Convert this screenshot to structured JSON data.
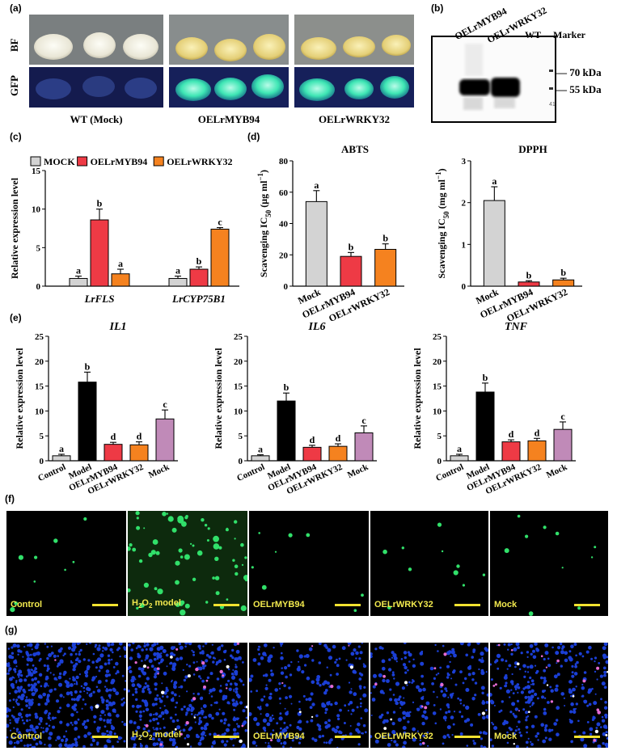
{
  "panel_a": {
    "label": "(a)",
    "row_labels": [
      "BF",
      "GFP"
    ],
    "columns": [
      "WT (Mock)",
      "OELrMYB94",
      "OELrWRKY32"
    ]
  },
  "panel_b": {
    "label": "(b)",
    "lanes": [
      "OELrMYB94",
      "OELrWRKY32",
      "WT",
      "Marker"
    ],
    "markers": [
      "70 kDa",
      "55 kDa"
    ],
    "faint_text": "417"
  },
  "chart_data": [
    {
      "panel": "(c)",
      "type": "bar",
      "categories": [
        "LrFLS",
        "LrCYP75B1"
      ],
      "series": [
        {
          "name": "MOCK",
          "values": [
            1.0,
            1.0
          ],
          "errors": [
            0.3,
            0.3
          ],
          "letters": [
            "a",
            "a"
          ],
          "color": "#d3d3d3"
        },
        {
          "name": "OELrMYB94",
          "values": [
            8.6,
            2.2
          ],
          "errors": [
            1.4,
            0.3
          ],
          "letters": [
            "b",
            "b"
          ],
          "color": "#ee3a45"
        },
        {
          "name": "OELrWRKY32",
          "values": [
            1.6,
            7.4
          ],
          "errors": [
            0.6,
            0.2
          ],
          "letters": [
            "a",
            "c"
          ],
          "color": "#f5821f"
        }
      ],
      "ylabel": "Relative expression level",
      "yticks": [
        0,
        5,
        10,
        15
      ],
      "ylim": [
        0,
        15
      ],
      "legend": "top"
    },
    {
      "panel": "(d)",
      "type": "bar",
      "title": "ABTS",
      "categories": [
        "Mock",
        "OELrMYB94",
        "OELrWRKY32"
      ],
      "values": [
        54,
        19,
        23.5
      ],
      "errors": [
        7,
        2.5,
        3.5
      ],
      "letters": [
        "a",
        "b",
        "b"
      ],
      "colors": [
        "#d3d3d3",
        "#ee3a45",
        "#f5821f"
      ],
      "ylabel": "Scavenging IC50 (μg ml−1)",
      "yticks": [
        0,
        20,
        40,
        60,
        80
      ],
      "ylim": [
        0,
        80
      ]
    },
    {
      "panel": "(d)",
      "type": "bar",
      "title": "DPPH",
      "categories": [
        "Mock",
        "OELrMYB94",
        "OELrWRKY32"
      ],
      "values": [
        2.05,
        0.1,
        0.15
      ],
      "errors": [
        0.33,
        0.03,
        0.04
      ],
      "letters": [
        "a",
        "b",
        "b"
      ],
      "colors": [
        "#d3d3d3",
        "#ee3a45",
        "#f5821f"
      ],
      "ylabel": "Scavenging IC50 (mg ml−1)",
      "yticks": [
        0,
        1,
        2,
        3
      ],
      "ylim": [
        0,
        3
      ]
    },
    {
      "panel": "(e)",
      "type": "bar",
      "title": "IL1",
      "categories": [
        "Control",
        "Model",
        "OELrMYB94",
        "OELrWRKY32",
        "Mock"
      ],
      "values": [
        1.0,
        15.8,
        3.3,
        3.2,
        8.4
      ],
      "errors": [
        0.3,
        2.0,
        0.4,
        0.6,
        1.8
      ],
      "letters": [
        "a",
        "b",
        "d",
        "d",
        "c"
      ],
      "colors": [
        "#d3d3d3",
        "#000000",
        "#ee3a45",
        "#f5821f",
        "#c08ab8"
      ],
      "ylabel": "Relative expression level",
      "yticks": [
        0,
        5,
        10,
        15,
        20,
        25
      ],
      "ylim": [
        0,
        25
      ]
    },
    {
      "panel": "(e)",
      "type": "bar",
      "title": "IL6",
      "categories": [
        "Control",
        "Model",
        "OELrMYB94",
        "OELrWRKY32",
        "Mock"
      ],
      "values": [
        1.0,
        12.0,
        2.7,
        2.9,
        5.6
      ],
      "errors": [
        0.2,
        1.6,
        0.4,
        0.5,
        1.4
      ],
      "letters": [
        "a",
        "b",
        "d",
        "d",
        "c"
      ],
      "colors": [
        "#d3d3d3",
        "#000000",
        "#ee3a45",
        "#f5821f",
        "#c08ab8"
      ],
      "ylabel": "Relative expression level",
      "yticks": [
        0,
        5,
        10,
        15,
        20,
        25
      ],
      "ylim": [
        0,
        25
      ]
    },
    {
      "panel": "(e)",
      "type": "bar",
      "title": "TNF",
      "categories": [
        "Control",
        "Model",
        "OELrMYB94",
        "OELrWRKY32",
        "Mock"
      ],
      "values": [
        1.0,
        13.8,
        3.8,
        4.0,
        6.3
      ],
      "errors": [
        0.3,
        1.8,
        0.4,
        0.5,
        1.5
      ],
      "letters": [
        "a",
        "b",
        "d",
        "d",
        "c"
      ],
      "colors": [
        "#d3d3d3",
        "#000000",
        "#ee3a45",
        "#f5821f",
        "#c08ab8"
      ],
      "ylabel": "Relative expression level",
      "yticks": [
        0,
        5,
        10,
        15,
        20,
        25
      ],
      "ylim": [
        0,
        25
      ]
    }
  ],
  "panel_f": {
    "label": "(f)",
    "images": [
      "Control",
      "H2O2 model",
      "OELrMYB94",
      "OELrWRKY32",
      "Mock"
    ]
  },
  "panel_g": {
    "label": "(g)",
    "images": [
      "Control",
      "H2O2 model",
      "OELrMYB94",
      "OELrWRKY32",
      "Mock"
    ]
  },
  "colors": {
    "gfp_green": "#31e06a",
    "hoechst_blue": "#1b3fd6",
    "scale_bar": "#f2e230"
  }
}
